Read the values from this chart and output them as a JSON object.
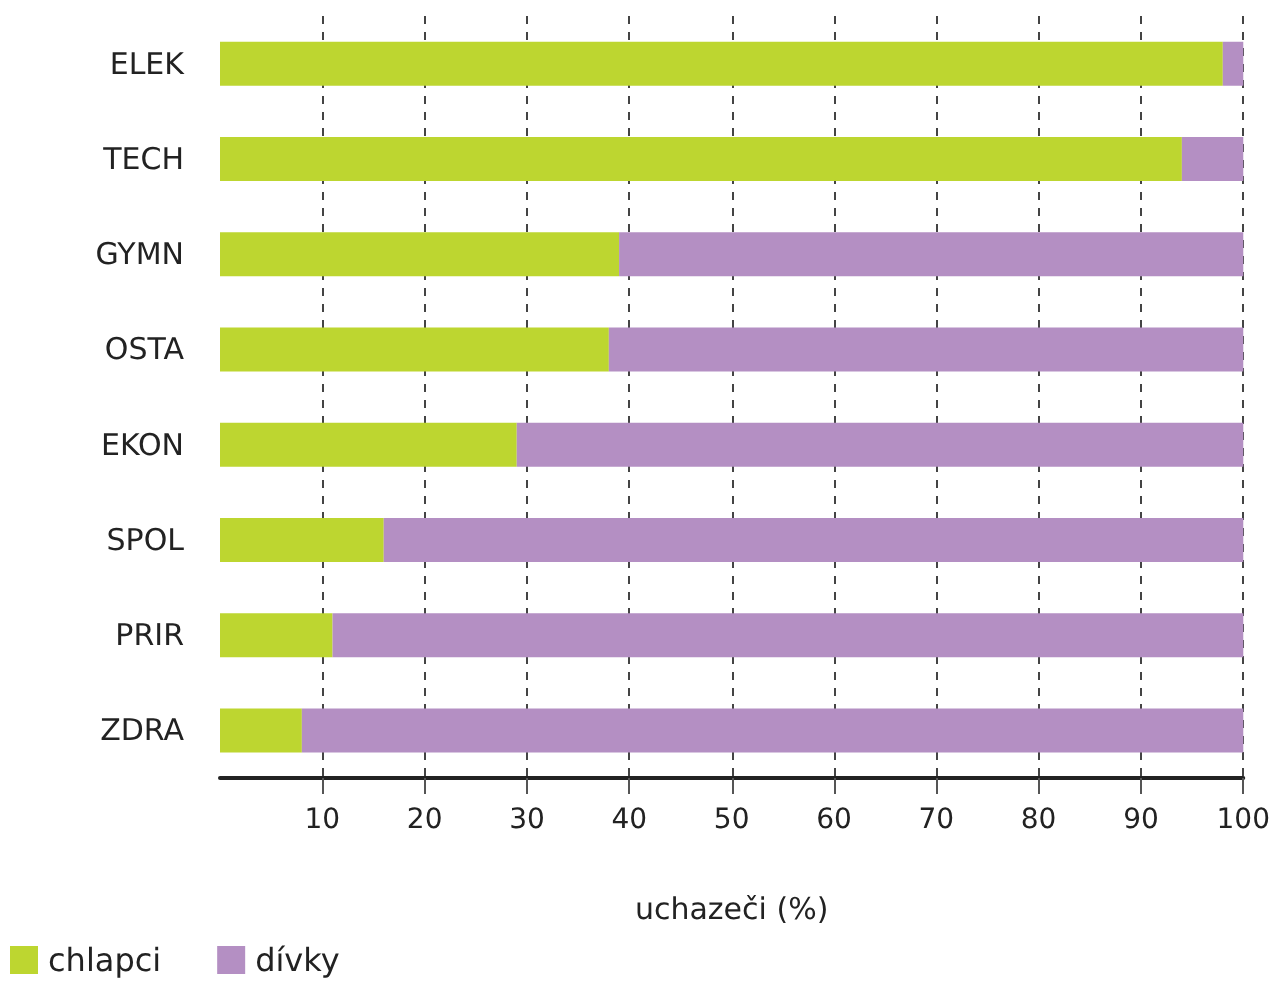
{
  "chart_data": {
    "type": "bar",
    "orientation": "horizontal",
    "stacked": true,
    "xlabel": "uchazeči (%)",
    "categories": [
      "ELEK",
      "TECH",
      "GYMN",
      "OSTA",
      "EKON",
      "SPOL",
      "PRIR",
      "ZDRA"
    ],
    "series": [
      {
        "name": "chlapci",
        "color": "#bdd630",
        "values": [
          98,
          94,
          39,
          38,
          29,
          16,
          11,
          8
        ]
      },
      {
        "name": "dívky",
        "color": "#b48fc3",
        "values": [
          2,
          6,
          61,
          62,
          71,
          84,
          89,
          92
        ]
      }
    ],
    "xlim": [
      0,
      100
    ],
    "xticks": [
      10,
      20,
      30,
      40,
      50,
      60,
      70,
      80,
      90,
      100
    ],
    "grid": "x",
    "legend": "bottom left"
  }
}
